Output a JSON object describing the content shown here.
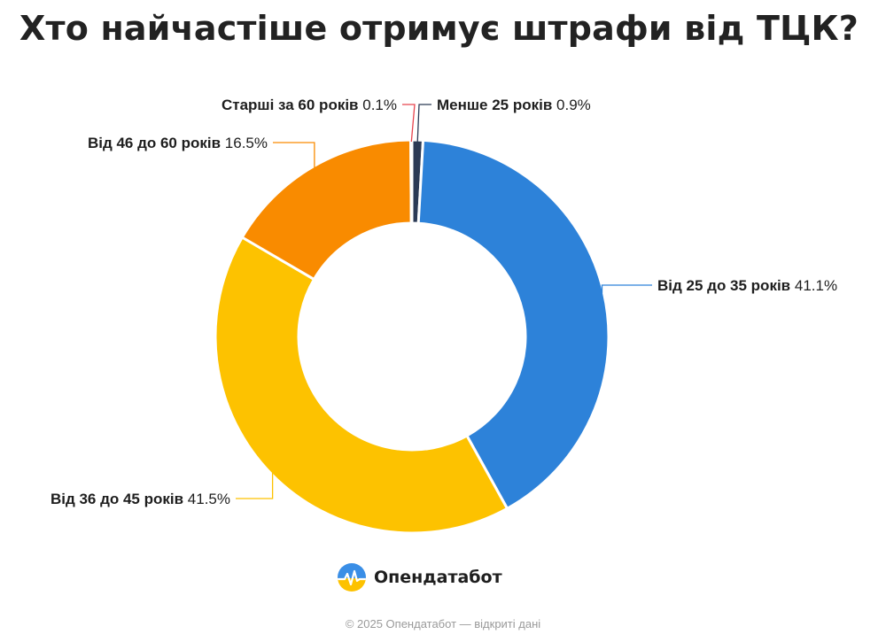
{
  "page": {
    "title": "Хто найчастіше отримує штрафи від ТЦК?",
    "brand": "Опендатабот",
    "footer": "© 2025 Опендатабот — відкриті дані"
  },
  "chart_data": {
    "type": "pie",
    "variant": "donut",
    "title": "Хто найчастіше отримує штрафи від ТЦК?",
    "unit": "%",
    "slices": [
      {
        "label": "Менше 25 років",
        "value": 0.9,
        "display": "0.9%",
        "color": "#2b3a55"
      },
      {
        "label": "Від 25 до 35 років",
        "value": 41.1,
        "display": "41.1%",
        "color": "#2d82d9"
      },
      {
        "label": "Від 36 до 45 років",
        "value": 41.5,
        "display": "41.5%",
        "color": "#fdc200"
      },
      {
        "label": "Від 46 до 60 років",
        "value": 16.5,
        "display": "16.5%",
        "color": "#f98b00"
      },
      {
        "label": "Старші за 60 років",
        "value": 0.1,
        "display": "0.1%",
        "color": "#e8434d"
      }
    ]
  }
}
